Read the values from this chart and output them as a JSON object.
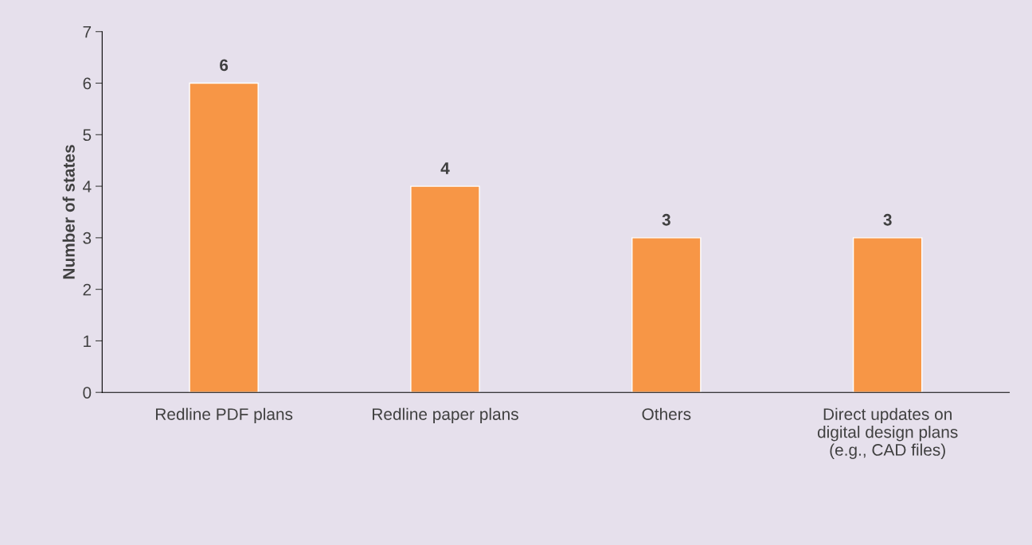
{
  "chart_data": {
    "type": "bar",
    "ylabel": "Number of states",
    "categories": [
      "Redline PDF plans",
      "Redline paper plans",
      "Others",
      "Direct updates on\ndigital design plans\n(e.g., CAD files)"
    ],
    "values": [
      6,
      4,
      3,
      3
    ],
    "color": "#f79646",
    "ylim": [
      0,
      7
    ],
    "yticks": [
      0,
      1,
      2,
      3,
      4,
      5,
      6,
      7
    ],
    "grid": false,
    "data_labels": true
  }
}
